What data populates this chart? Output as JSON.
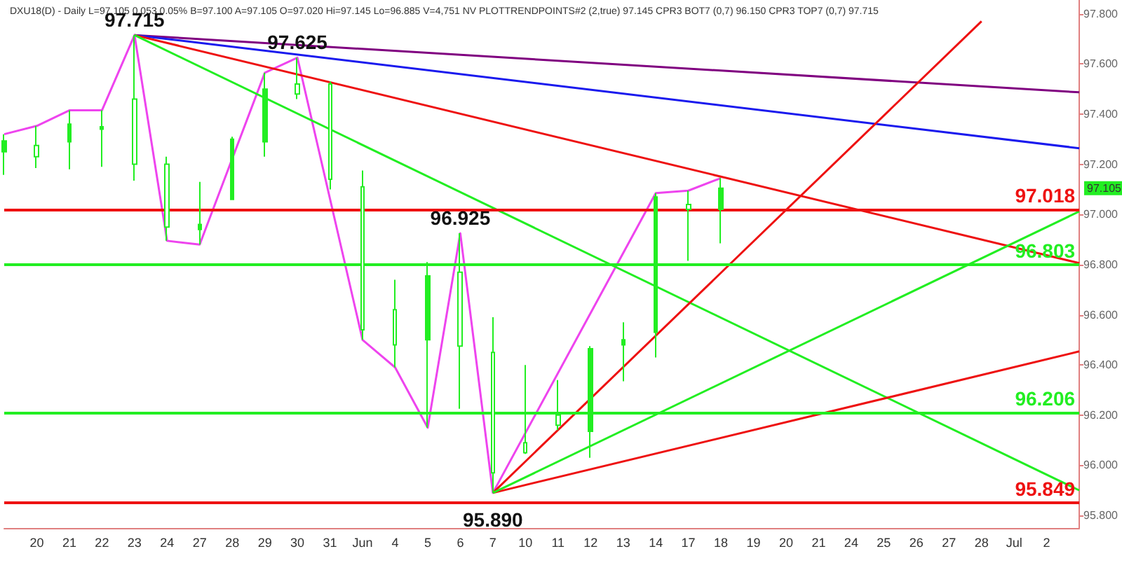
{
  "chart_data": {
    "type": "candlestick",
    "title": "DXU18(D) - Daily L=97.105 0.053 0.05% B=97.100 A=97.105 O=97.020 Hi=97.145 Lo=96.885 V=4,751 NV PLOTTRENDPOINTS#2 (2,true) 97.145 CPR3 BOT7 (0,7) 96.150 CPR3 TOP7 (0,7) 97.715",
    "categories": [
      null,
      "20",
      "21",
      "22",
      "23",
      "24",
      "27",
      "28",
      "29",
      "30",
      "31",
      "Jun",
      "4",
      "5",
      "6",
      "7",
      "10",
      "11",
      "12",
      "13",
      "14",
      "17",
      "18",
      "19",
      "20",
      "21",
      "24",
      "25",
      "26",
      "27",
      "28",
      "Jul",
      "2",
      null
    ],
    "color": "#22ee22",
    "ohlc": [
      [
        97.25,
        97.32,
        97.158,
        97.293
      ],
      [
        97.275,
        97.353,
        97.185,
        97.23
      ],
      [
        97.29,
        97.415,
        97.18,
        97.36
      ],
      [
        97.34,
        97.415,
        97.19,
        97.35
      ],
      [
        97.46,
        97.715,
        97.135,
        97.2
      ],
      [
        97.2,
        97.23,
        96.895,
        96.95
      ],
      [
        96.94,
        97.13,
        96.88,
        96.96
      ],
      [
        97.06,
        97.31,
        97.06,
        97.3
      ],
      [
        97.29,
        97.565,
        97.23,
        97.5
      ],
      [
        97.52,
        97.625,
        97.46,
        97.48
      ],
      [
        97.52,
        97.53,
        97.1,
        97.14
      ],
      [
        97.11,
        97.175,
        96.5,
        96.54
      ],
      [
        96.62,
        96.74,
        96.39,
        96.48
      ],
      [
        96.5,
        96.81,
        96.15,
        96.755
      ],
      [
        96.77,
        96.925,
        96.225,
        96.475
      ],
      [
        96.45,
        96.59,
        95.89,
        95.97
      ],
      [
        96.09,
        96.4,
        96.045,
        96.05
      ],
      [
        96.2,
        96.34,
        96.14,
        96.16
      ],
      [
        96.135,
        96.475,
        96.03,
        96.465
      ],
      [
        96.48,
        96.57,
        96.335,
        96.5
      ],
      [
        96.53,
        97.085,
        96.43,
        97.07
      ],
      [
        97.04,
        97.095,
        96.815,
        97.02
      ],
      [
        97.02,
        97.145,
        96.885,
        97.105
      ],
      null,
      null,
      null,
      null,
      null,
      null,
      null,
      null,
      null,
      null,
      null
    ],
    "series": [
      {
        "type": "line",
        "color": "#ee44ee",
        "values": [
          97.32,
          97.353,
          97.415,
          97.415,
          97.715,
          96.895,
          96.88,
          null,
          97.565,
          97.625,
          null,
          96.5,
          96.39,
          96.15,
          96.925,
          95.89,
          null,
          null,
          null,
          null,
          97.085,
          97.095,
          97.145,
          null,
          null,
          null,
          null,
          null,
          null,
          null,
          null,
          null,
          null,
          null
        ]
      },
      {
        "type": "line",
        "color": "#800080",
        "values": [
          null,
          null,
          null,
          null,
          97.715,
          null,
          null,
          null,
          null,
          null,
          null,
          null,
          null,
          null,
          null,
          null,
          null,
          null,
          null,
          null,
          null,
          null,
          null,
          null,
          null,
          null,
          null,
          null,
          null,
          null,
          null,
          null,
          null,
          97.487
        ]
      },
      {
        "type": "line",
        "color": "#1a1aee",
        "values": [
          null,
          null,
          null,
          null,
          97.715,
          null,
          null,
          null,
          null,
          null,
          null,
          null,
          null,
          null,
          null,
          null,
          null,
          null,
          null,
          null,
          null,
          null,
          null,
          null,
          null,
          null,
          null,
          null,
          null,
          null,
          null,
          null,
          null,
          97.264
        ]
      },
      {
        "type": "line",
        "color": "#ee1111",
        "values": [
          null,
          null,
          null,
          null,
          97.715,
          null,
          null,
          null,
          null,
          null,
          null,
          null,
          null,
          null,
          null,
          null,
          null,
          null,
          null,
          null,
          null,
          null,
          null,
          null,
          null,
          null,
          null,
          null,
          null,
          null,
          null,
          null,
          null,
          96.806
        ]
      },
      {
        "type": "line",
        "color": "#22ee22",
        "values": [
          null,
          null,
          null,
          null,
          97.715,
          null,
          null,
          null,
          null,
          null,
          null,
          null,
          null,
          null,
          null,
          null,
          null,
          null,
          null,
          null,
          null,
          null,
          null,
          null,
          null,
          null,
          null,
          null,
          null,
          null,
          null,
          null,
          null,
          95.9
        ]
      },
      {
        "type": "line",
        "color": "#ee1111",
        "values": [
          null,
          null,
          null,
          null,
          null,
          null,
          null,
          null,
          null,
          null,
          null,
          null,
          null,
          null,
          null,
          95.89,
          null,
          null,
          null,
          null,
          null,
          null,
          null,
          null,
          null,
          null,
          null,
          null,
          null,
          null,
          97.77,
          null,
          null,
          null
        ]
      },
      {
        "type": "line",
        "color": "#ee1111",
        "values": [
          null,
          null,
          null,
          null,
          null,
          null,
          null,
          null,
          null,
          null,
          null,
          null,
          null,
          null,
          null,
          95.89,
          null,
          null,
          null,
          null,
          null,
          null,
          null,
          null,
          null,
          null,
          null,
          null,
          null,
          null,
          null,
          null,
          null,
          96.454
        ]
      },
      {
        "type": "line",
        "color": "#22ee22",
        "values": [
          null,
          null,
          null,
          null,
          null,
          null,
          null,
          null,
          null,
          null,
          null,
          null,
          null,
          null,
          null,
          95.89,
          null,
          null,
          null,
          null,
          null,
          null,
          null,
          null,
          null,
          null,
          null,
          null,
          null,
          null,
          null,
          null,
          null,
          97.012
        ]
      }
    ],
    "ref_lines": [
      {
        "axis": "y",
        "value": 97.018,
        "label": "97.018",
        "color": "#ee1111"
      },
      {
        "axis": "y",
        "value": 96.803,
        "label": "96.803",
        "color": "#22ee22"
      },
      {
        "axis": "y",
        "value": 96.206,
        "label": "96.206",
        "color": "#22ee22"
      },
      {
        "axis": "y",
        "value": 95.849,
        "label": "95.849",
        "color": "#ee1111"
      }
    ],
    "annotations": [
      {
        "text": "97.715",
        "x": "23",
        "y": 97.715
      },
      {
        "text": "97.625",
        "x": "30",
        "y": 97.625
      },
      {
        "text": "96.925",
        "x": "6",
        "y": 96.925
      },
      {
        "text": "95.890",
        "x": "7",
        "y": 95.89
      },
      "97.105"
    ],
    "ylim": [
      95.75,
      97.855
    ],
    "yticks": [
      {
        "value": 95.8,
        "label": "95.800"
      },
      {
        "value": 96.0,
        "label": "96.000"
      },
      {
        "value": 96.2,
        "label": "96.200"
      },
      {
        "value": 96.4,
        "label": "96.400"
      },
      {
        "value": 96.6,
        "label": "96.600"
      },
      {
        "value": 96.8,
        "label": "96.800"
      },
      {
        "value": 97.0,
        "label": "97.000"
      },
      {
        "value": 97.2,
        "label": "97.200"
      },
      {
        "value": 97.4,
        "label": "97.400"
      },
      {
        "value": 97.6,
        "label": "97.600"
      },
      {
        "value": 97.8,
        "label": "97.800"
      }
    ],
    "grid": false
  }
}
